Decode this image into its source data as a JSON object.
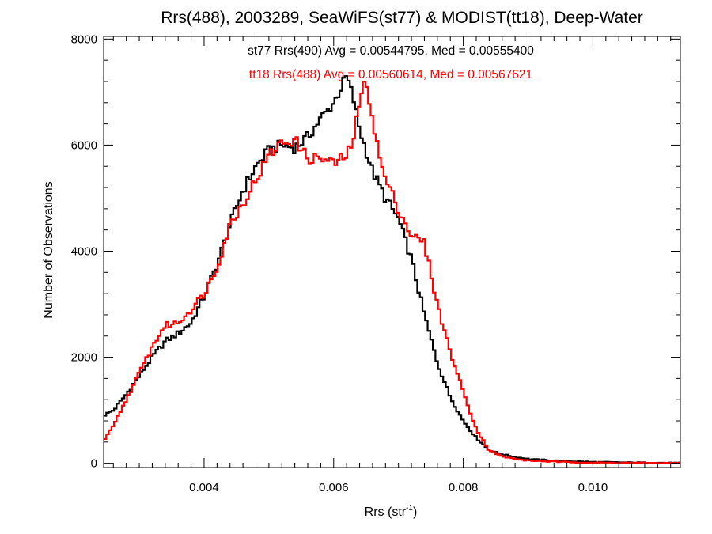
{
  "chart_data": {
    "type": "line",
    "title": "Rrs(488), 2003289, SeaWiFS(st77) & MODIST(tt18), Deep-Water",
    "xlabel": {
      "main": "Rrs (str",
      "sup": "-1",
      "tail": ")"
    },
    "ylabel": "Number of Observations",
    "xlim": [
      0.00245,
      0.01135
    ],
    "ylim": [
      -80,
      8050
    ],
    "xticks": [
      0.004,
      0.006,
      0.008,
      0.01
    ],
    "xtick_labels": [
      "0.004",
      "0.006",
      "0.008",
      "0.010"
    ],
    "xminor_step": 0.0002,
    "yticks": [
      0,
      2000,
      4000,
      6000,
      8000
    ],
    "ytick_labels": [
      "0",
      "2000",
      "4000",
      "6000",
      "8000"
    ],
    "yminor_step": 400,
    "grid": false,
    "annotations": [
      {
        "text": "st77 Rrs(490) Avg = 0.00544795, Med = 0.00555400",
        "color": "#000000"
      },
      {
        "text": "tt18 Rrs(488) Avg = 0.00560614, Med = 0.00567621",
        "color": "#ff0000"
      }
    ],
    "series": [
      {
        "color": "#000000",
        "bin_width": 4e-05,
        "x": [
          0.00245,
          0.0026,
          0.0028,
          0.003,
          0.0032,
          0.0034,
          0.0036,
          0.0038,
          0.004,
          0.0042,
          0.0044,
          0.0046,
          0.0048,
          0.005,
          0.0052,
          0.0054,
          0.0056,
          0.0058,
          0.006,
          0.0061,
          0.0062,
          0.0063,
          0.0064,
          0.0066,
          0.0068,
          0.007,
          0.0072,
          0.0074,
          0.0076,
          0.0078,
          0.008,
          0.0082,
          0.0084,
          0.0086,
          0.0088,
          0.009,
          0.0095,
          0.01,
          0.0105,
          0.011,
          0.01135
        ],
        "y": [
          900,
          1000,
          1300,
          1650,
          2000,
          2300,
          2450,
          2650,
          3150,
          3750,
          4500,
          5150,
          5600,
          5900,
          6000,
          5950,
          6150,
          6500,
          6800,
          7050,
          7300,
          6900,
          6300,
          5500,
          5000,
          4600,
          3850,
          2800,
          1900,
          1250,
          800,
          480,
          250,
          170,
          120,
          80,
          45,
          25,
          15,
          10,
          5
        ]
      },
      {
        "color": "#ff0000",
        "bin_width": 4e-05,
        "x": [
          0.00245,
          0.0026,
          0.0028,
          0.003,
          0.0032,
          0.0034,
          0.0036,
          0.0038,
          0.004,
          0.0042,
          0.0044,
          0.0046,
          0.0048,
          0.005,
          0.0052,
          0.0054,
          0.0056,
          0.0058,
          0.006,
          0.0062,
          0.0063,
          0.0064,
          0.0065,
          0.0066,
          0.0067,
          0.0068,
          0.007,
          0.0072,
          0.0074,
          0.0076,
          0.0078,
          0.008,
          0.0082,
          0.0084,
          0.0086,
          0.0088,
          0.009,
          0.0095,
          0.01,
          0.0105,
          0.011,
          0.01135
        ],
        "y": [
          420,
          700,
          1200,
          1700,
          2200,
          2600,
          2650,
          2900,
          3200,
          3700,
          4500,
          4900,
          5350,
          5800,
          6050,
          6100,
          5750,
          5750,
          5650,
          5800,
          6100,
          6800,
          7250,
          6500,
          5800,
          5350,
          4800,
          4300,
          4150,
          3000,
          2100,
          1350,
          650,
          240,
          130,
          80,
          50,
          25,
          12,
          8,
          5,
          2
        ]
      }
    ]
  }
}
